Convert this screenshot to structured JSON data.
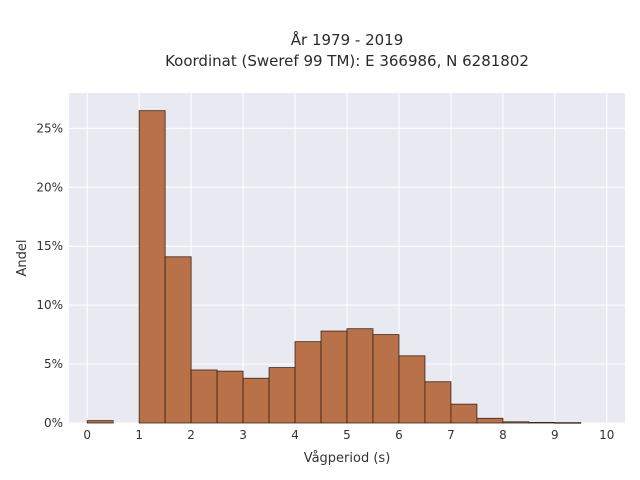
{
  "chart_data": {
    "type": "bar",
    "title_lines": [
      "År 1979 - 2019",
      "Koordinat (Sweref 99 TM): E 366986, N 6281802"
    ],
    "xlabel": "Vågperiod (s)",
    "ylabel": "Andel",
    "bin_width": 0.5,
    "bin_starts": [
      0,
      0.5,
      1,
      1.5,
      2,
      2.5,
      3,
      3.5,
      4,
      4.5,
      5,
      5.5,
      6,
      6.5,
      7,
      7.5,
      8,
      8.5,
      9,
      9.5
    ],
    "values": [
      0.2,
      0.0,
      26.5,
      14.1,
      4.5,
      4.4,
      3.8,
      4.7,
      6.9,
      7.8,
      8.0,
      7.5,
      5.7,
      3.5,
      1.6,
      0.4,
      0.1,
      0.05,
      0.03,
      0.0
    ],
    "xlim": [
      -0.35,
      10.35
    ],
    "ylim": [
      0,
      28
    ],
    "x_ticks": [
      0,
      1,
      2,
      3,
      4,
      5,
      6,
      7,
      8,
      9,
      10
    ],
    "x_tick_labels": [
      "0",
      "1",
      "2",
      "3",
      "4",
      "5",
      "6",
      "7",
      "8",
      "9",
      "10"
    ],
    "y_ticks": [
      0,
      5,
      10,
      15,
      20,
      25
    ],
    "y_tick_labels": [
      "0%",
      "5%",
      "10%",
      "15%",
      "20%",
      "25%"
    ],
    "grid": true,
    "colors": {
      "bar_fill": "#b87148",
      "bar_edge": "#3a2418",
      "plot_background": "#e9e9f1",
      "grid": "#ffffff"
    }
  }
}
